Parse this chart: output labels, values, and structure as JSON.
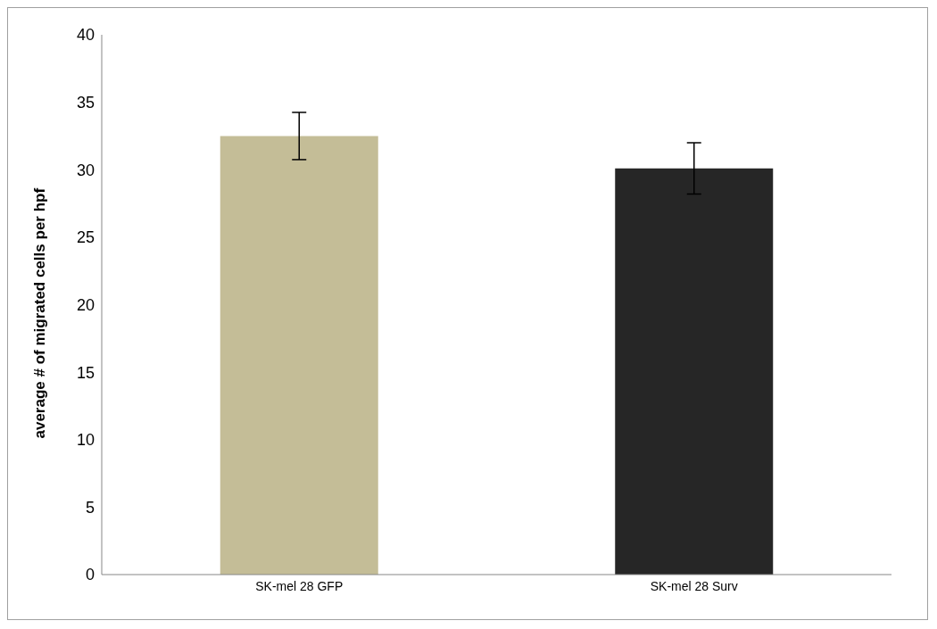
{
  "chart_data": {
    "type": "bar",
    "ylabel": "average # of migrated cells per hpf",
    "categories": [
      "SK-mel 28 GFP",
      "SK-mel 28 Surv"
    ],
    "values": [
      32.5,
      30.1
    ],
    "colors": [
      "#c4bd97",
      "#262626"
    ],
    "errors": [
      1.75,
      1.9
    ],
    "ylim": [
      0,
      40
    ],
    "yticks": [
      0,
      5,
      10,
      15,
      20,
      25,
      30,
      35,
      40
    ],
    "grid": false,
    "legend": false
  }
}
